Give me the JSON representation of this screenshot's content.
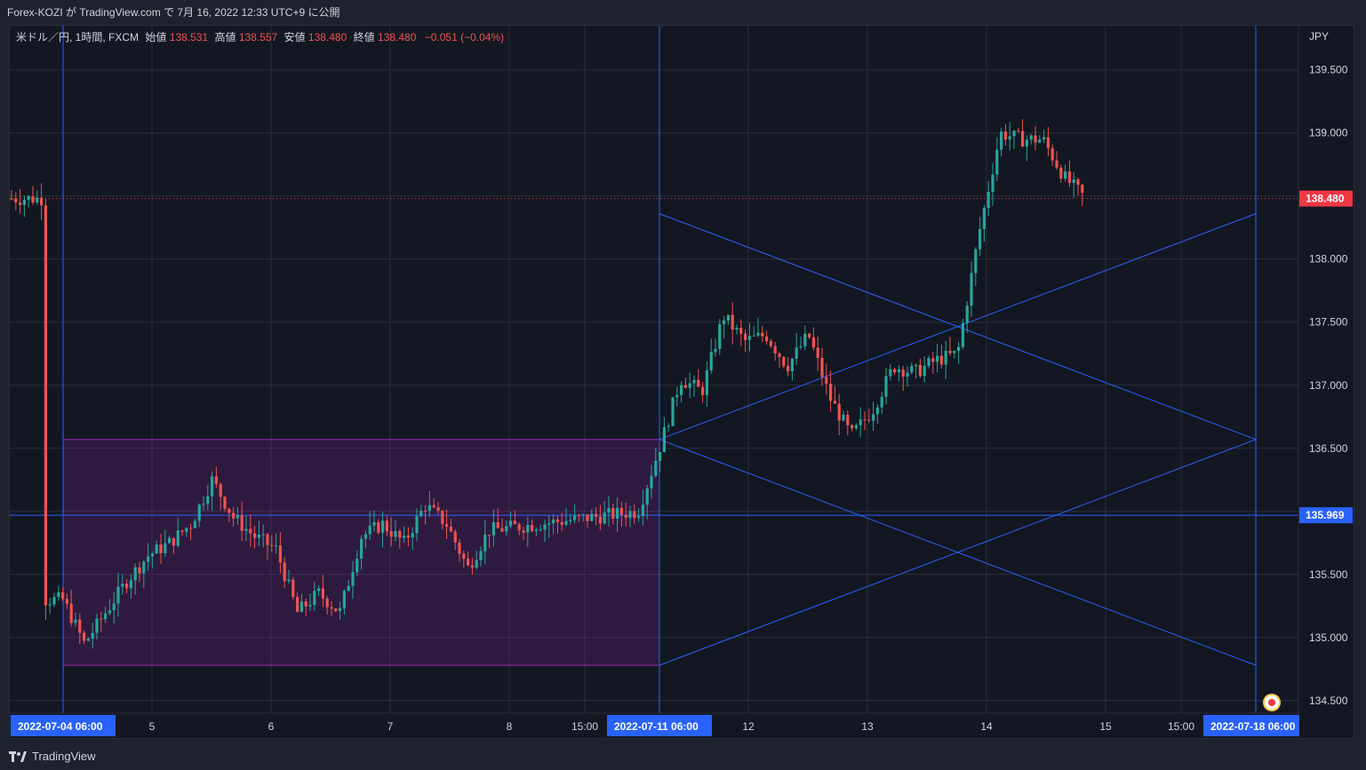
{
  "header": {
    "publish_line": "Forex-KOZI が TradingView.com で 7月 16, 2022 12:33 UTC+9 に公開"
  },
  "legend": {
    "symbol": "米ドル／円, 1時間, FXCM",
    "open_label": "始値",
    "open_value": "138.531",
    "high_label": "高値",
    "high_value": "138.557",
    "low_label": "安値",
    "low_value": "138.480",
    "close_label": "終値",
    "close_value": "138.480",
    "change": "−0.051 (−0.04%)"
  },
  "price_axis": {
    "currency": "JPY",
    "ticks": [
      "139.500",
      "139.000",
      "138.500",
      "138.000",
      "137.500",
      "137.000",
      "136.500",
      "136.000",
      "135.500",
      "135.000",
      "134.500"
    ],
    "last_price_badge": "138.480",
    "level_badge": "135.969"
  },
  "time_axis": {
    "labels": [
      "5",
      "6",
      "7",
      "8",
      "15:00",
      "12",
      "13",
      "14",
      "15",
      "15:00"
    ],
    "markers": [
      "2022-07-04   06:00",
      "2022-07-11   06:00",
      "2022-07-18   06:00"
    ]
  },
  "footer": {
    "brand": "TradingView"
  },
  "colors": {
    "background": "#131722",
    "up": "#26a69a",
    "down": "#ef5350",
    "drawing_blue": "#2962ff",
    "box_purple": "#9c27b0",
    "last_price": "#f23645"
  },
  "chart_data": {
    "type": "candlestick",
    "symbol": "米ドル／円",
    "interval": "1時間",
    "source": "FXCM",
    "x_range": [
      "2022-07-04 06:00",
      "2022-07-18 06:00"
    ],
    "y_range": [
      134.4,
      139.85
    ],
    "last_price": 138.48,
    "horizontal_level": 135.969,
    "range_box": {
      "x": [
        "2022-07-04 06:00",
        "2022-07-11 06:00"
      ],
      "y": [
        134.78,
        136.57
      ]
    },
    "projection_lines": [
      {
        "from": [
          "2022-07-11 06:00",
          138.36
        ],
        "to": [
          "2022-07-18 06:00",
          136.57
        ]
      },
      {
        "from": [
          "2022-07-11 06:00",
          136.57
        ],
        "to": [
          "2022-07-18 06:00",
          138.36
        ]
      },
      {
        "from": [
          "2022-07-11 06:00",
          136.57
        ],
        "to": [
          "2022-07-18 06:00",
          134.78
        ]
      },
      {
        "from": [
          "2022-07-11 06:00",
          134.78
        ],
        "to": [
          "2022-07-18 06:00",
          136.57
        ]
      }
    ],
    "vertical_lines": [
      "2022-07-04 06:00",
      "2022-07-11 06:00",
      "2022-07-18 06:00"
    ],
    "close_path": [
      [
        "2022-07-04 00:00",
        135.3
      ],
      [
        "2022-07-04 06:00",
        135.3
      ],
      [
        "2022-07-04 12:00",
        134.95
      ],
      [
        "2022-07-04 18:00",
        135.2
      ],
      [
        "2022-07-05 00:00",
        135.45
      ],
      [
        "2022-07-05 06:00",
        135.65
      ],
      [
        "2022-07-05 12:00",
        135.75
      ],
      [
        "2022-07-05 18:00",
        135.9
      ],
      [
        "2022-07-06 00:00",
        136.25
      ],
      [
        "2022-07-06 06:00",
        135.95
      ],
      [
        "2022-07-06 12:00",
        135.8
      ],
      [
        "2022-07-06 18:00",
        135.7
      ],
      [
        "2022-07-07 00:00",
        135.2
      ],
      [
        "2022-07-07 06:00",
        135.35
      ],
      [
        "2022-07-07 12:00",
        135.2
      ],
      [
        "2022-07-07 18:00",
        135.8
      ],
      [
        "2022-07-08 00:00",
        135.9
      ],
      [
        "2022-07-08 06:00",
        135.75
      ],
      [
        "2022-07-08 12:00",
        136.05
      ],
      [
        "2022-07-08 18:00",
        135.9
      ],
      [
        "2022-07-09 00:00",
        135.55
      ],
      [
        "2022-07-09 06:00",
        135.85
      ],
      [
        "2022-07-11 00:00",
        136.0
      ],
      [
        "2022-07-11 06:00",
        136.5
      ],
      [
        "2022-07-11 12:00",
        137.05
      ],
      [
        "2022-07-11 18:00",
        136.95
      ],
      [
        "2022-07-12 00:00",
        137.55
      ],
      [
        "2022-07-12 06:00",
        137.35
      ],
      [
        "2022-07-12 12:00",
        137.4
      ],
      [
        "2022-07-12 18:00",
        137.15
      ],
      [
        "2022-07-13 00:00",
        137.4
      ],
      [
        "2022-07-13 06:00",
        136.9
      ],
      [
        "2022-07-13 12:00",
        136.6
      ],
      [
        "2022-07-13 18:00",
        136.8
      ],
      [
        "2022-07-14 00:00",
        137.15
      ],
      [
        "2022-07-14 06:00",
        137.1
      ],
      [
        "2022-07-14 12:00",
        137.2
      ],
      [
        "2022-07-14 18:00",
        137.25
      ],
      [
        "2022-07-15 00:00",
        138.2
      ],
      [
        "2022-07-15 06:00",
        139.0
      ],
      [
        "2022-07-15 12:00",
        138.95
      ],
      [
        "2022-07-15 18:00",
        138.95
      ],
      [
        "2022-07-16 00:00",
        138.65
      ],
      [
        "2022-07-16 06:00",
        138.48
      ]
    ]
  }
}
